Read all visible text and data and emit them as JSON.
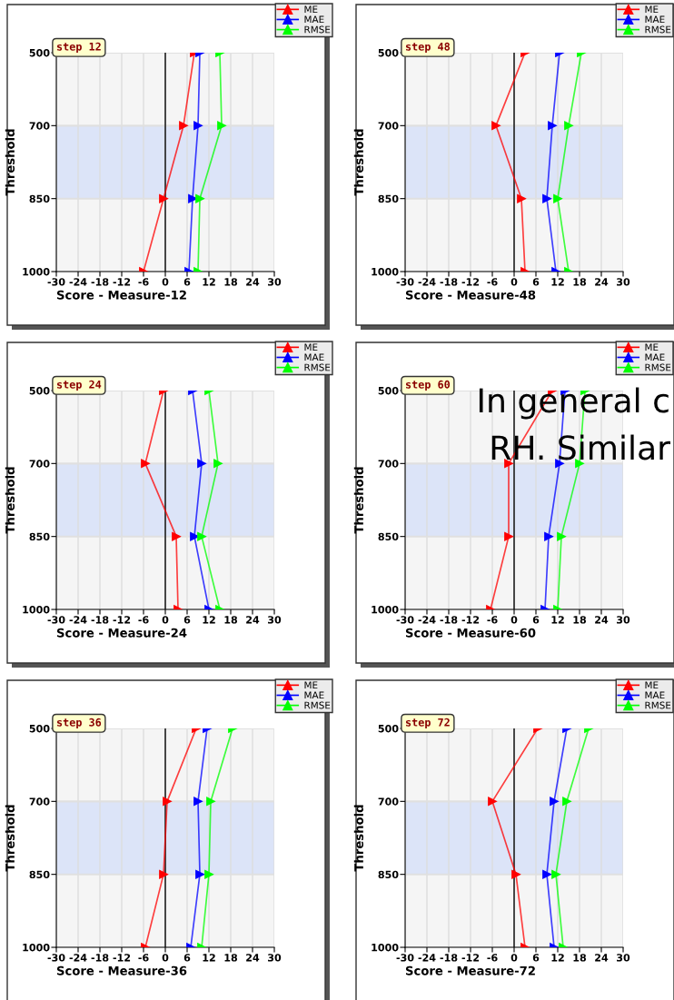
{
  "chart_data": [
    {
      "type": "line",
      "orientation": "horizontal",
      "title": "step 12",
      "xlabel": "Score - Measure-12",
      "ylabel": "Threshold",
      "categories": [
        "500",
        "700",
        "850",
        "1000"
      ],
      "xlim": [
        -30,
        30
      ],
      "xticks": [
        -30,
        -24,
        -18,
        -12,
        -6,
        0,
        6,
        12,
        18,
        24,
        30
      ],
      "grid": true,
      "legend": "top right",
      "marker": "triangle",
      "bands": [
        {
          "axis": "y",
          "from": "700",
          "to": "850",
          "color": "#dce4f8"
        }
      ],
      "ref_lines": [
        {
          "axis": "x",
          "value": 0,
          "color": "#000000"
        }
      ],
      "series": [
        {
          "name": "ME",
          "color": "#ff0000",
          "values": [
            8,
            5,
            -0.5,
            -6
          ]
        },
        {
          "name": "MAE",
          "color": "#0000ff",
          "values": [
            9.5,
            9,
            7.5,
            6.5
          ]
        },
        {
          "name": "RMSE",
          "color": "#00ff00",
          "values": [
            15,
            15.5,
            9.5,
            9
          ]
        }
      ]
    },
    {
      "type": "line",
      "orientation": "horizontal",
      "title": "step 48",
      "xlabel": "Score - Measure-48",
      "ylabel": "Threshold",
      "categories": [
        "500",
        "700",
        "850",
        "1000"
      ],
      "xlim": [
        -30,
        30
      ],
      "xticks": [
        -30,
        -24,
        -18,
        -12,
        -6,
        0,
        6,
        12,
        18,
        24,
        30
      ],
      "grid": true,
      "legend": "top right",
      "marker": "triangle",
      "bands": [
        {
          "axis": "y",
          "from": "700",
          "to": "850",
          "color": "#dce4f8"
        }
      ],
      "ref_lines": [
        {
          "axis": "x",
          "value": 0,
          "color": "#000000"
        }
      ],
      "series": [
        {
          "name": "ME",
          "color": "#ff0000",
          "values": [
            3,
            -5,
            2,
            3
          ]
        },
        {
          "name": "MAE",
          "color": "#0000ff",
          "values": [
            12.5,
            10.5,
            9,
            11.5
          ]
        },
        {
          "name": "RMSE",
          "color": "#00ff00",
          "values": [
            18.5,
            15,
            12,
            15
          ]
        }
      ]
    },
    {
      "type": "line",
      "orientation": "horizontal",
      "title": "step 24",
      "xlabel": "Score - Measure-24",
      "ylabel": "Threshold",
      "categories": [
        "500",
        "700",
        "850",
        "1000"
      ],
      "xlim": [
        -30,
        30
      ],
      "xticks": [
        -30,
        -24,
        -18,
        -12,
        -6,
        0,
        6,
        12,
        18,
        24,
        30
      ],
      "grid": true,
      "legend": "top right",
      "marker": "triangle",
      "bands": [
        {
          "axis": "y",
          "from": "700",
          "to": "850",
          "color": "#dce4f8"
        }
      ],
      "ref_lines": [
        {
          "axis": "x",
          "value": 0,
          "color": "#000000"
        }
      ],
      "series": [
        {
          "name": "ME",
          "color": "#ff0000",
          "values": [
            -0.5,
            -5.5,
            3,
            3.5
          ]
        },
        {
          "name": "MAE",
          "color": "#0000ff",
          "values": [
            7.5,
            10,
            8,
            12
          ]
        },
        {
          "name": "RMSE",
          "color": "#00ff00",
          "values": [
            12,
            14.5,
            10,
            15
          ]
        }
      ]
    },
    {
      "type": "line",
      "orientation": "horizontal",
      "title": "step 60",
      "xlabel": "Score - Measure-60",
      "ylabel": "Threshold",
      "categories": [
        "500",
        "700",
        "850",
        "1000"
      ],
      "xlim": [
        -30,
        30
      ],
      "xticks": [
        -30,
        -24,
        -18,
        -12,
        -6,
        0,
        6,
        12,
        18,
        24,
        30
      ],
      "grid": true,
      "legend": "top right",
      "marker": "triangle",
      "bands": [
        {
          "axis": "y",
          "from": "700",
          "to": "850",
          "color": "#dce4f8"
        }
      ],
      "ref_lines": [
        {
          "axis": "x",
          "value": 0,
          "color": "#000000"
        }
      ],
      "annotations": [
        "In general c",
        "RH. Similar"
      ],
      "series": [
        {
          "name": "ME",
          "color": "#ff0000",
          "values": [
            10.5,
            -1.5,
            -1.5,
            -6.5
          ]
        },
        {
          "name": "MAE",
          "color": "#0000ff",
          "values": [
            14,
            12.5,
            9.5,
            8.5
          ]
        },
        {
          "name": "RMSE",
          "color": "#00ff00",
          "values": [
            19.5,
            18,
            13,
            12
          ]
        }
      ]
    },
    {
      "type": "line",
      "orientation": "horizontal",
      "title": "step 36",
      "xlabel": "Score - Measure-36",
      "ylabel": "Threshold",
      "categories": [
        "500",
        "700",
        "850",
        "1000"
      ],
      "xlim": [
        -30,
        30
      ],
      "xticks": [
        -30,
        -24,
        -18,
        -12,
        -6,
        0,
        6,
        12,
        18,
        24,
        30
      ],
      "grid": true,
      "legend": "top right",
      "marker": "triangle",
      "bands": [
        {
          "axis": "y",
          "from": "700",
          "to": "850",
          "color": "#dce4f8"
        }
      ],
      "ref_lines": [
        {
          "axis": "x",
          "value": 0,
          "color": "#000000"
        }
      ],
      "series": [
        {
          "name": "ME",
          "color": "#ff0000",
          "values": [
            8.5,
            0.5,
            -0.5,
            -5.5
          ]
        },
        {
          "name": "MAE",
          "color": "#0000ff",
          "values": [
            11.5,
            9,
            9.5,
            7
          ]
        },
        {
          "name": "RMSE",
          "color": "#00ff00",
          "values": [
            18.5,
            12.5,
            12,
            10
          ]
        }
      ]
    },
    {
      "type": "line",
      "orientation": "horizontal",
      "title": "step 72",
      "xlabel": "Score - Measure-72",
      "ylabel": "Threshold",
      "categories": [
        "500",
        "700",
        "850",
        "1000"
      ],
      "xlim": [
        -30,
        30
      ],
      "xticks": [
        -30,
        -24,
        -18,
        -12,
        -6,
        0,
        6,
        12,
        18,
        24,
        30
      ],
      "grid": true,
      "legend": "top right",
      "marker": "triangle",
      "bands": [
        {
          "axis": "y",
          "from": "700",
          "to": "850",
          "color": "#dce4f8"
        }
      ],
      "ref_lines": [
        {
          "axis": "x",
          "value": 0,
          "color": "#000000"
        }
      ],
      "series": [
        {
          "name": "ME",
          "color": "#ff0000",
          "values": [
            6.5,
            -6,
            0.5,
            3
          ]
        },
        {
          "name": "MAE",
          "color": "#0000ff",
          "values": [
            14.5,
            11,
            9,
            11
          ]
        },
        {
          "name": "RMSE",
          "color": "#00ff00",
          "values": [
            20.5,
            14.5,
            11.5,
            13.5
          ]
        }
      ]
    }
  ]
}
